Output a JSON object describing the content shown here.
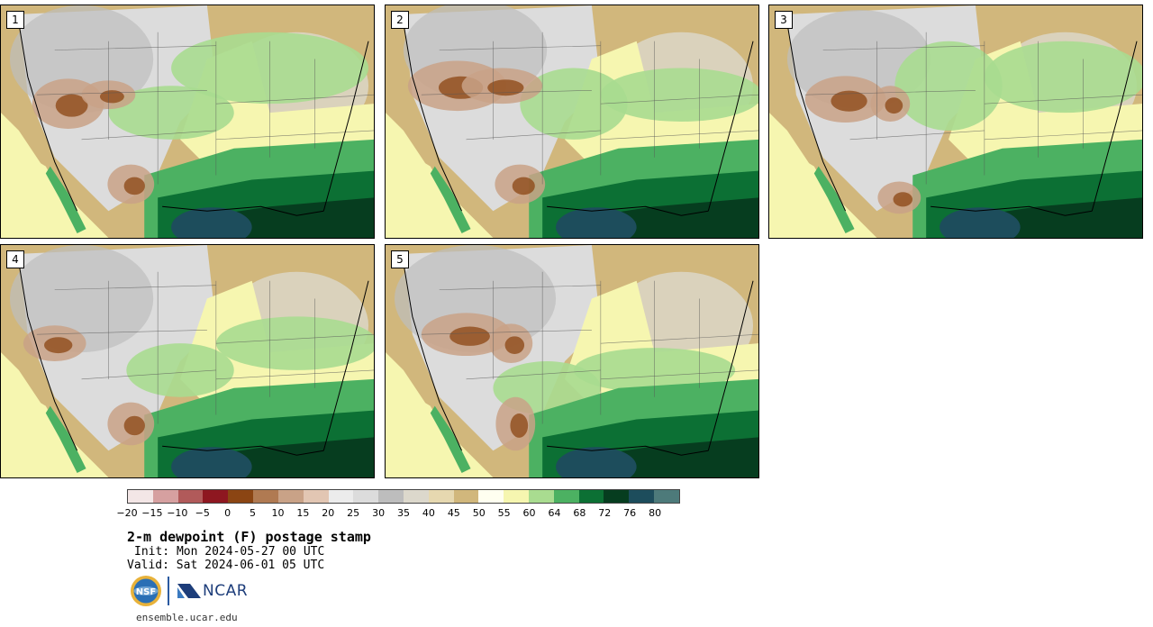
{
  "panels": [
    {
      "label": "1",
      "variant": 0
    },
    {
      "label": "2",
      "variant": 1
    },
    {
      "label": "3",
      "variant": 2
    },
    {
      "label": "4",
      "variant": 3
    },
    {
      "label": "5",
      "variant": 4
    }
  ],
  "colorbar": {
    "colors": [
      "#f3e6e6",
      "#d6a0a0",
      "#b15a5a",
      "#8e1720",
      "#8b4513",
      "#b07a52",
      "#c9a287",
      "#e2c6b3",
      "#ececec",
      "#dcdcdc",
      "#bdbdbd",
      "#dcd8cc",
      "#e6d8b0",
      "#d1b77c",
      "#fffff0",
      "#f6f6b0",
      "#a9dc90",
      "#4cb162",
      "#0c7034",
      "#063d1f",
      "#1d4d5c",
      "#4d7a7a"
    ],
    "ticks": [
      "−20",
      "−15",
      "−10",
      "−5",
      "0",
      "5",
      "10",
      "15",
      "20",
      "25",
      "30",
      "35",
      "40",
      "45",
      "50",
      "55",
      "60",
      "64",
      "68",
      "72",
      "76",
      "80"
    ]
  },
  "title": "2-m dewpoint (F) postage stamp",
  "init": "Init: Mon 2024-05-27 00 UTC",
  "valid": "Valid: Sat 2024-06-01 05 UTC",
  "logos": {
    "nsf": "NSF",
    "ncar": "NCAR"
  },
  "site": "ensemble.ucar.edu"
}
